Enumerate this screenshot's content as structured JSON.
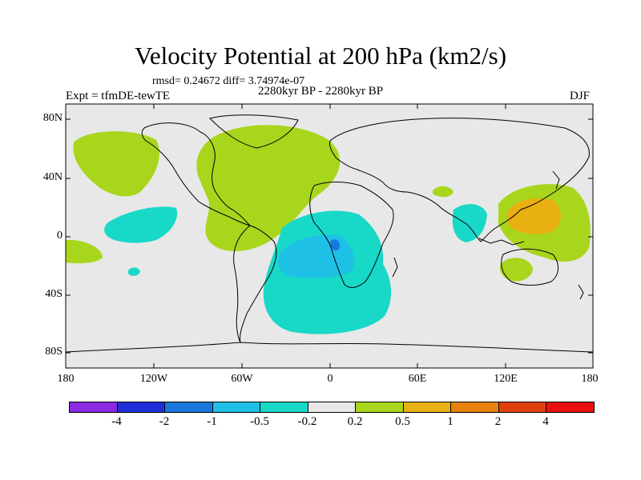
{
  "title": "Velocity Potential at 200 hPa (km2/s)",
  "stats": "rmsd= 0.24672 diff= 3.74974e-07",
  "experiment": "Expt = tfmDE-tewTE",
  "period": "2280kyr BP - 2280kyr BP",
  "season": "DJF",
  "axes": {
    "y_labels": [
      "80N",
      "40N",
      "0",
      "40S",
      "80S"
    ],
    "x_labels": [
      "180",
      "120W",
      "60W",
      "0",
      "60E",
      "120E",
      "180"
    ]
  },
  "colorbar": {
    "colors": [
      "#8a2be2",
      "#2030d8",
      "#1a78dc",
      "#1ec0e6",
      "#18d8c8",
      "#e8e8e8",
      "#a8d61c",
      "#e8b010",
      "#e8800c",
      "#e04010",
      "#e81010"
    ],
    "labels": [
      "-4",
      "-2",
      "-1",
      "-0.5",
      "-0.2",
      "0.2",
      "0.5",
      "1",
      "2",
      "4"
    ]
  },
  "colors": {
    "background": "#e8e8e8",
    "positive_weak": "#a8d61c",
    "positive_mid": "#e8b010",
    "negative_weak": "#18d8c8",
    "negative_mid": "#1ec0e6",
    "negative_strong": "#1a78dc"
  }
}
